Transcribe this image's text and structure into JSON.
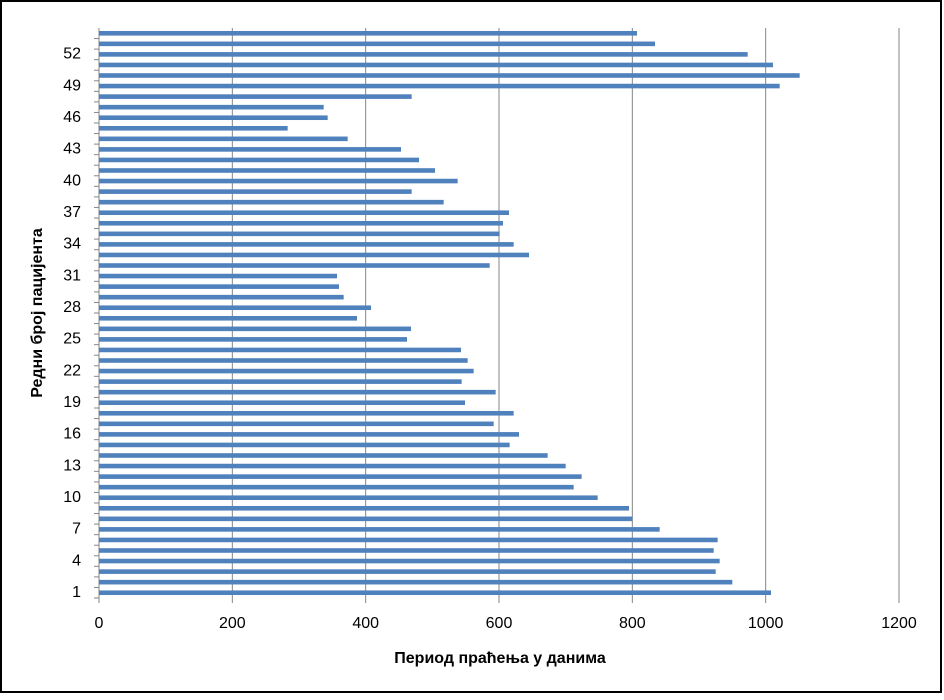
{
  "chart_data": {
    "type": "barh",
    "xlabel": "Период праћења у данима",
    "ylabel": "Редни број пацијента",
    "categories": [
      "1",
      null,
      null,
      "4",
      null,
      null,
      "7",
      null,
      null,
      "10",
      null,
      null,
      "13",
      null,
      null,
      "16",
      null,
      null,
      "19",
      null,
      null,
      "22",
      null,
      null,
      "25",
      null,
      null,
      "28",
      null,
      null,
      "31",
      null,
      null,
      "34",
      null,
      null,
      "37",
      null,
      null,
      "40",
      null,
      null,
      "43",
      null,
      null,
      "46",
      null,
      null,
      "49",
      null,
      null,
      "52",
      null,
      null
    ],
    "values": [
      1008,
      950,
      925,
      931,
      922,
      928,
      841,
      800,
      795,
      748,
      712,
      724,
      700,
      673,
      616,
      630,
      592,
      622,
      549,
      595,
      544,
      562,
      553,
      543,
      462,
      468,
      387,
      408,
      367,
      360,
      357,
      586,
      645,
      622,
      601,
      606,
      615,
      517,
      469,
      538,
      504,
      480,
      453,
      373,
      283,
      343,
      337,
      469,
      1021,
      1051,
      1011,
      973,
      834,
      807
    ],
    "color": "#4f81bd",
    "xlim": [
      0,
      1200
    ],
    "xticks": [
      0,
      200,
      400,
      600,
      800,
      1000,
      1200
    ],
    "grid": true
  }
}
